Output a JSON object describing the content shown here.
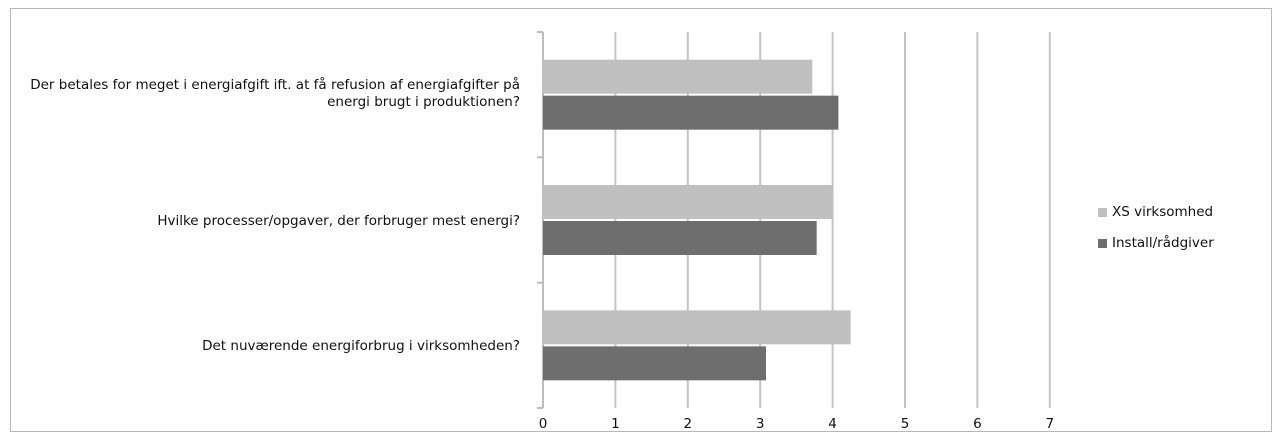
{
  "chart_data": {
    "type": "bar",
    "orientation": "horizontal",
    "categories": [
      "Der betales for meget i energiafgift ift. at få refusion af energiafgifter på energi brugt i produktionen?",
      "Hvilke processer/opgaver, der forbruger mest energi?",
      "Det nuværende energiforbrug i virksomheden?"
    ],
    "series": [
      {
        "name": "XS virksomhed",
        "color": "#c0c0c0",
        "values": [
          3.72,
          4.0,
          4.25
        ]
      },
      {
        "name": "Install/rådgiver",
        "color": "#6e6e6e",
        "values": [
          4.08,
          3.78,
          3.08
        ]
      }
    ],
    "xlim": [
      0,
      7
    ],
    "xticks": [
      "0",
      "1",
      "2",
      "3",
      "4",
      "5",
      "6",
      "7"
    ],
    "grid": true,
    "legend_position": "right",
    "title": "",
    "xlabel": "",
    "ylabel": ""
  }
}
